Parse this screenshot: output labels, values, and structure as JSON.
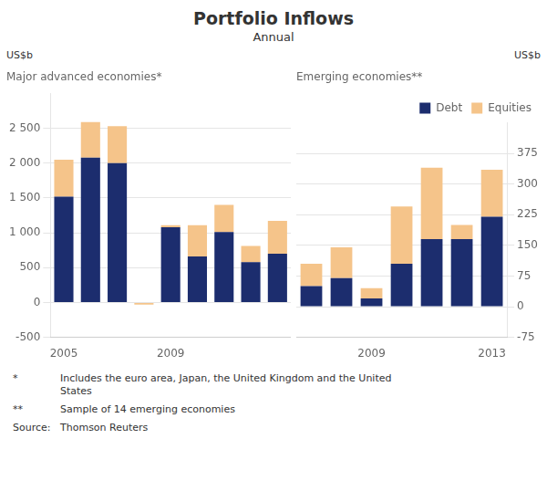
{
  "title": "Portfolio Inflows",
  "subtitle": "Annual",
  "annotations": [
    [
      "*",
      "Includes the euro area, Japan, the United Kingdom and the United\nStates"
    ],
    [
      "**",
      "Sample of 14 emerging economies"
    ],
    [
      "Source:",
      "Thomson Reuters"
    ]
  ],
  "chart_data": [
    {
      "type": "bar",
      "stacked": true,
      "title": "Major advanced economies*",
      "ylabel": "US$b",
      "categories": [
        "2005",
        null,
        null,
        null,
        "2009",
        null,
        null,
        null,
        null
      ],
      "series": [
        {
          "name": "Debt",
          "color": "#1C2D6E",
          "values": [
            1520,
            2080,
            2000,
            0,
            1080,
            660,
            1010,
            580,
            700
          ]
        },
        {
          "name": "Equities",
          "color": "#F5C48A",
          "values": [
            530,
            510,
            530,
            -30,
            30,
            450,
            390,
            230,
            470
          ]
        }
      ],
      "ylim": [
        -500,
        3000
      ],
      "yticks": [
        -500,
        0,
        500,
        {
          "value": 1000,
          "label": "1 000"
        },
        {
          "value": 1500,
          "label": "1 500"
        },
        {
          "value": 2000,
          "label": "2 000"
        },
        {
          "value": 2500,
          "label": "2 500"
        }
      ],
      "grid": true
    },
    {
      "type": "bar",
      "stacked": true,
      "title": "Emerging economies**",
      "ylabel": "US$b",
      "categories": [
        null,
        null,
        "2009",
        null,
        null,
        null,
        "2013"
      ],
      "series": [
        {
          "name": "Debt",
          "color": "#1C2D6E",
          "axis": "y2",
          "values": [
            50,
            70,
            20,
            105,
            165,
            165,
            220
          ]
        },
        {
          "name": "Equities",
          "color": "#F5C48A",
          "axis": "y2",
          "values": [
            55,
            75,
            25,
            140,
            175,
            35,
            115
          ]
        }
      ],
      "y2lim": [
        -75,
        450
      ],
      "y2ticks": [
        -75,
        0,
        75,
        150,
        225,
        300,
        375
      ],
      "grid": true,
      "legend": "upper right"
    }
  ]
}
